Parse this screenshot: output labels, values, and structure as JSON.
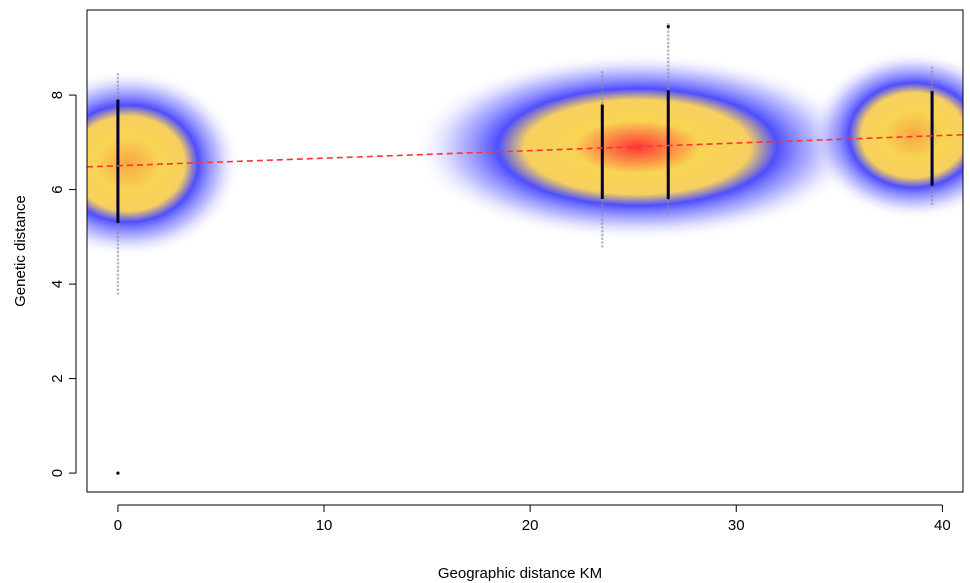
{
  "chart_data": {
    "type": "scatter",
    "title": "",
    "xlabel": "Geographic distance KM",
    "ylabel": "Genetic distance",
    "xlim": [
      -1.5,
      41
    ],
    "ylim": [
      -0.4,
      9.8
    ],
    "xticks": [
      0,
      10,
      20,
      30,
      40
    ],
    "yticks": [
      0,
      2,
      4,
      6,
      8
    ],
    "grid": false,
    "legend": "none",
    "colors": {
      "density_low": "#3a3aff",
      "density_mid": "#f5c842",
      "density_high": "#ff2a2a",
      "points": "#000033",
      "trend_line": "#ff3333"
    },
    "density_clusters": [
      {
        "x": 0.5,
        "y": 6.55,
        "sx": 2.6,
        "sy": 0.95,
        "peak": 0.8
      },
      {
        "x": 25.2,
        "y": 6.9,
        "sx": 5.2,
        "sy": 0.95,
        "peak": 1.0
      },
      {
        "x": 38.6,
        "y": 7.15,
        "sx": 2.4,
        "sy": 0.85,
        "peak": 0.65
      }
    ],
    "point_columns": [
      {
        "x": 0.0,
        "ymin": 3.8,
        "ymax": 8.5,
        "core_min": 5.3,
        "core_max": 7.9
      },
      {
        "x": 23.5,
        "ymin": 4.8,
        "ymax": 8.5,
        "core_min": 5.8,
        "core_max": 7.8
      },
      {
        "x": 26.7,
        "ymin": 5.5,
        "ymax": 9.5,
        "core_min": 5.8,
        "core_max": 8.1
      },
      {
        "x": 39.5,
        "ymin": 5.7,
        "ymax": 8.6,
        "core_min": 6.1,
        "core_max": 8.1
      }
    ],
    "outliers": [
      {
        "x": 0.0,
        "y": 0.0
      },
      {
        "x": 26.7,
        "y": 9.45
      }
    ],
    "trend_line": {
      "x": [
        -1.5,
        41
      ],
      "y": [
        6.48,
        7.16
      ],
      "style": "dashed"
    }
  }
}
